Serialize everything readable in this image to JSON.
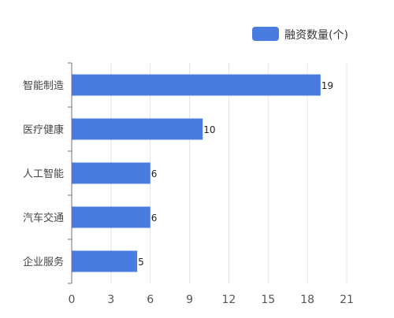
{
  "chart_data": {
    "type": "bar",
    "orientation": "horizontal",
    "categories": [
      "智能制造",
      "医疗健康",
      "人工智能",
      "汽车交通",
      "企业服务"
    ],
    "series": [
      {
        "name": "融资数量(个)",
        "values": [
          19,
          10,
          6,
          6,
          5
        ],
        "color": "#4a7be0"
      }
    ],
    "x_ticks": [
      0,
      3,
      6,
      9,
      12,
      15,
      18,
      21
    ],
    "xlim": [
      0,
      21
    ],
    "grid": true,
    "legend_position": "top-right",
    "data_labels": true
  }
}
